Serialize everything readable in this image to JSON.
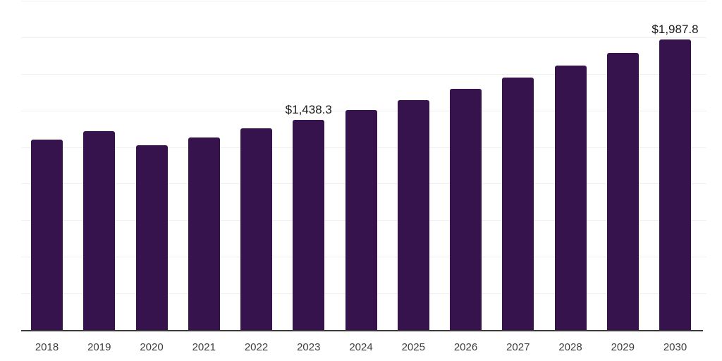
{
  "chart": {
    "background": "#ffffff",
    "bar_color": "#36134d",
    "gridline_color": "#f0f0f0",
    "axis_color": "#3a3a3a",
    "tick_label_color": "#3d3d3d",
    "value_label_color": "#1a1a1a"
  },
  "chart_data": {
    "type": "bar",
    "title": "",
    "xlabel": "",
    "ylabel": "",
    "categories": [
      "2018",
      "2019",
      "2020",
      "2021",
      "2022",
      "2023",
      "2024",
      "2025",
      "2026",
      "2027",
      "2028",
      "2029",
      "2030"
    ],
    "values": [
      1308.0,
      1365.0,
      1265.0,
      1319.0,
      1381.0,
      1438.3,
      1506.3,
      1577.6,
      1652.2,
      1730.4,
      1812.3,
      1898.0,
      1987.8
    ],
    "ylim": [
      0,
      2250
    ],
    "gridline_step": 250,
    "grid": "horizontal",
    "legend": "none",
    "unit_prefix": "$",
    "annotations": [
      {
        "category": "2023",
        "text": "$1,438.3"
      },
      {
        "category": "2030",
        "text": "$1,987.8"
      }
    ]
  }
}
